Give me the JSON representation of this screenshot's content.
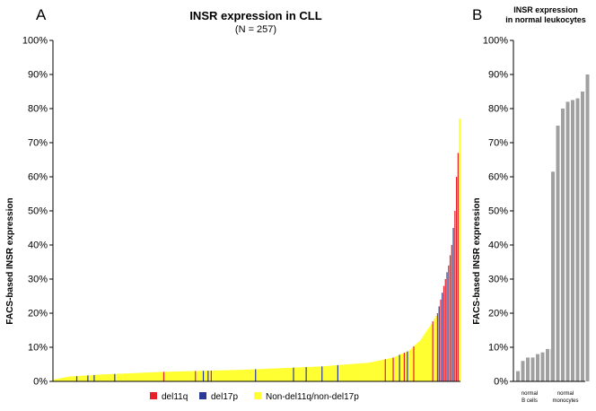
{
  "colors": {
    "del11q": "#e8202a",
    "del17p": "#2b3b95",
    "non_del": "#ffff33",
    "normal": "#a0a0a0",
    "axis": "#000000"
  },
  "chart_data": [
    {
      "panel_letter": "A",
      "type": "bar",
      "title": "INSR expression in CLL",
      "subtitle": "(N = 257)",
      "xlabel": "",
      "ylabel": "FACS-based INSR expression",
      "ylim": [
        0,
        100
      ],
      "yticks": [
        "0%",
        "10%",
        "20%",
        "30%",
        "40%",
        "50%",
        "60%",
        "70%",
        "80%",
        "90%",
        "100%"
      ],
      "legend_position": "bottom-center",
      "legend": [
        {
          "key": "del11q",
          "label": "del11q"
        },
        {
          "key": "del17p",
          "label": "del17p"
        },
        {
          "key": "non_del",
          "label": "Non-del11q/non-del17p"
        }
      ],
      "n_samples": 257,
      "distribution_anchors": [
        [
          0,
          0.5
        ],
        [
          10,
          1.4
        ],
        [
          30,
          2.0
        ],
        [
          70,
          2.8
        ],
        [
          120,
          3.4
        ],
        [
          170,
          4.4
        ],
        [
          200,
          5.5
        ],
        [
          215,
          7.0
        ],
        [
          225,
          9.0
        ],
        [
          232,
          12.0
        ],
        [
          238,
          16.0
        ],
        [
          243,
          20.0
        ],
        [
          247,
          28.0
        ],
        [
          250,
          34.0
        ],
        [
          252,
          40.0
        ],
        [
          254,
          50.0
        ],
        [
          255,
          60.0
        ],
        [
          256,
          67.0
        ],
        [
          257,
          77.0
        ]
      ],
      "del11q_ranks": [
        70,
        90,
        100,
        210,
        215,
        222,
        228,
        240,
        243,
        245,
        247,
        248,
        250,
        251,
        252,
        254,
        255,
        256
      ],
      "del17p_ranks": [
        15,
        22,
        26,
        39,
        95,
        98,
        128,
        152,
        160,
        170,
        180,
        219,
        224,
        244,
        246,
        249,
        253
      ]
    },
    {
      "panel_letter": "B",
      "type": "bar",
      "title": "INSR expression",
      "subtitle": "in normal leukocytes",
      "xlabel": "",
      "ylabel": "FACS-based INSR expression",
      "ylim": [
        0,
        100
      ],
      "yticks": [
        "0%",
        "10%",
        "20%",
        "30%",
        "40%",
        "50%",
        "60%",
        "70%",
        "80%",
        "90%",
        "100%"
      ],
      "groups": [
        {
          "label": "normal B cells",
          "line1": "normal",
          "line2": "B cells",
          "values": [
            3,
            6,
            7,
            7,
            8,
            8.5,
            9.5,
            9.5
          ]
        },
        {
          "label": "normal monocytes",
          "line1": "normal",
          "line2": "monocytes",
          "values": [
            61.5,
            75,
            80,
            82,
            82.5,
            83,
            85,
            90
          ]
        }
      ]
    }
  ]
}
